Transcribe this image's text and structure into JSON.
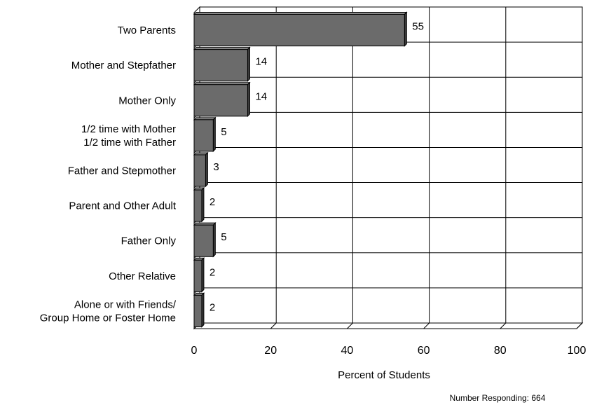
{
  "chart_data": {
    "type": "bar",
    "orientation": "horizontal",
    "categories": [
      [
        "Two Parents"
      ],
      [
        "Mother and Stepfather"
      ],
      [
        "Mother Only"
      ],
      [
        "1/2 time with Mother",
        "1/2 time with Father"
      ],
      [
        "Father and Stepmother"
      ],
      [
        "Parent and Other Adult"
      ],
      [
        "Father Only"
      ],
      [
        "Other Relative"
      ],
      [
        "Alone or with Friends/",
        "Group Home or Foster Home"
      ]
    ],
    "values": [
      55,
      14,
      14,
      5,
      3,
      2,
      5,
      2,
      2
    ],
    "xlabel": "Percent of Students",
    "xlim": [
      0,
      100
    ],
    "xticks": [
      0,
      20,
      40,
      60,
      80,
      100
    ],
    "grid": true,
    "bar_color": "#6b6b6b",
    "three_d": true
  },
  "footnote": "Number Responding: 664"
}
